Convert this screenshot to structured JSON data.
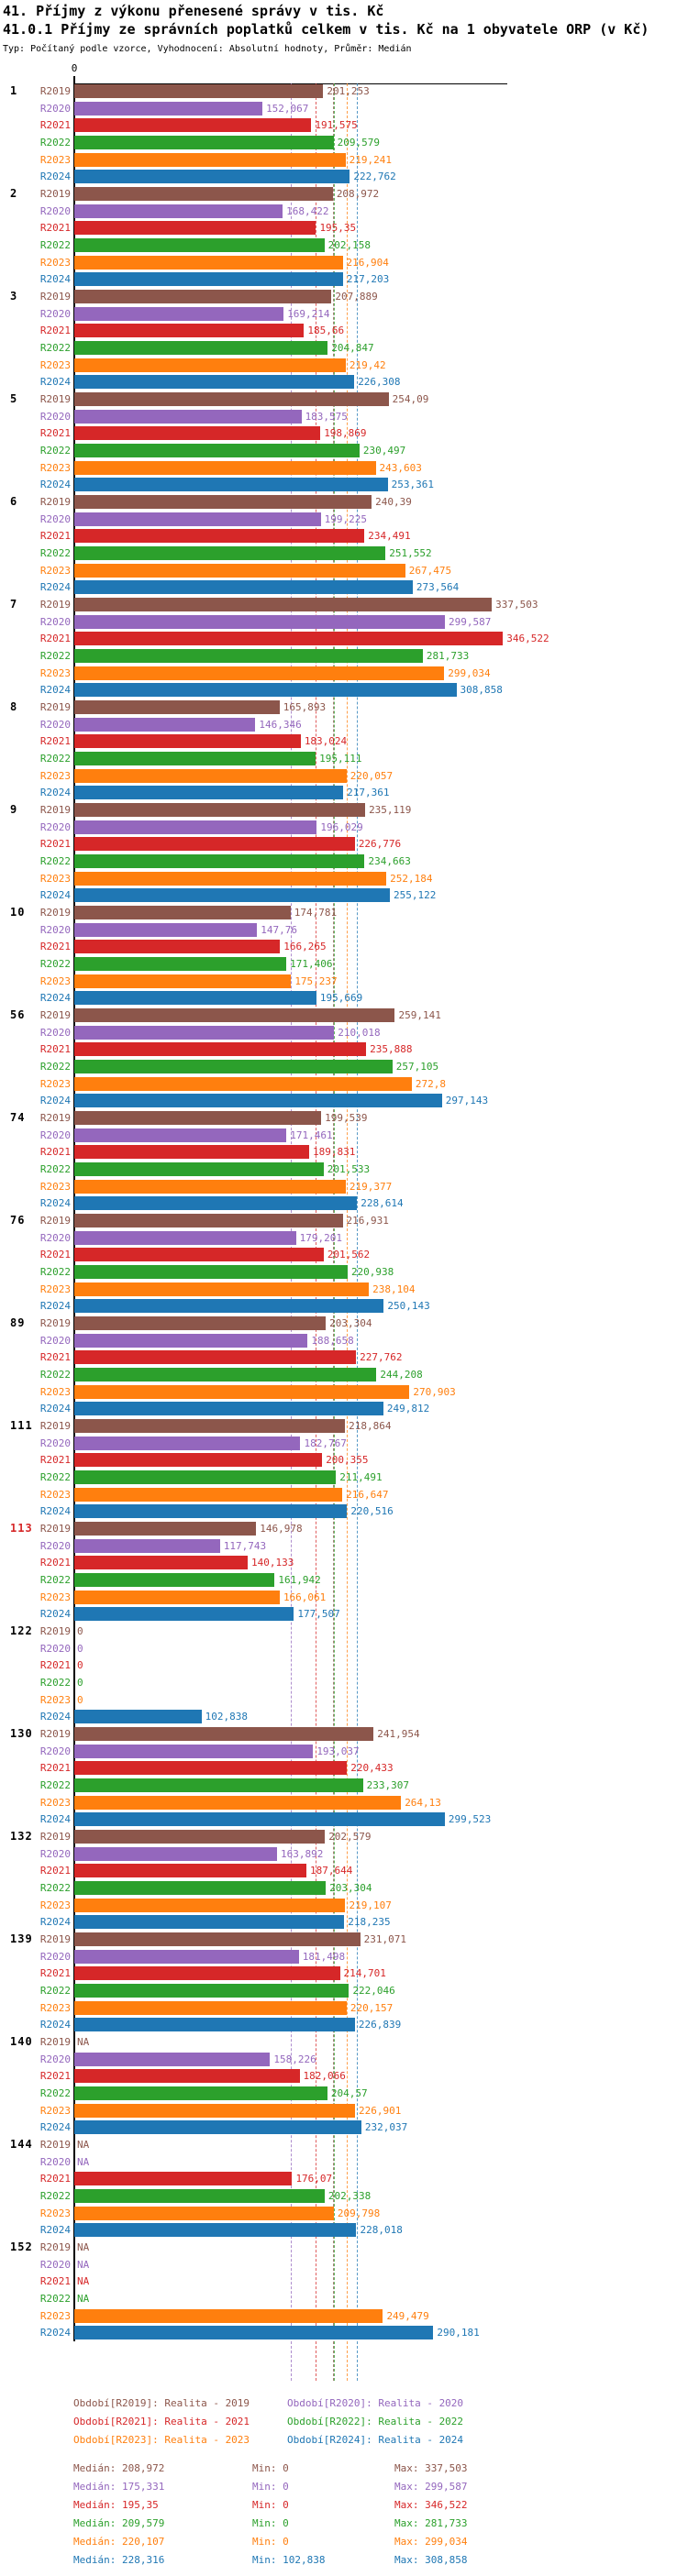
{
  "title1": "41. Příjmy z výkonu přenesené správy v tis. Kč",
  "title2": "41.0.1 Příjmy ze správních poplatků celkem v tis. Kč na 1 obyvatele ORP (v Kč)",
  "subtitle": "Typ: Počítaný podle vzorce, Vyhodnocení: Absolutní hodnoty, Průměr: Medián",
  "axis": {
    "zero_label": "0"
  },
  "colors": {
    "R2019": "#8c564b",
    "R2020": "#9467bd",
    "R2021": "#d62728",
    "R2022": "#2ca02c",
    "R2023": "#ff7f0e",
    "R2024": "#1f77b4",
    "group_label_default": "#000000",
    "group_label_highlight": "#d62728"
  },
  "chart_data": {
    "type": "bar",
    "orientation": "horizontal-grouped",
    "x_axis": {
      "zero_label": "0",
      "approx_max": 350,
      "unit": "Kč (tis.)"
    },
    "series_order": [
      "R2019",
      "R2020",
      "R2021",
      "R2022",
      "R2023",
      "R2024"
    ],
    "medians": {
      "R2019": "208,972",
      "R2020": "175,331",
      "R2021": "195,35",
      "R2022": "209,579",
      "R2023": "220,107",
      "R2024": "228,316"
    },
    "groups": [
      {
        "id": "1",
        "highlight": false,
        "values": [
          "201,253",
          "152,067",
          "191,575",
          "209,579",
          "219,241",
          "222,762"
        ]
      },
      {
        "id": "2",
        "highlight": false,
        "values": [
          "208,972",
          "168,422",
          "195,35",
          "202,158",
          "216,904",
          "217,203"
        ]
      },
      {
        "id": "3",
        "highlight": false,
        "values": [
          "207,889",
          "169,214",
          "185,66",
          "204,847",
          "219,42",
          "226,308"
        ]
      },
      {
        "id": "5",
        "highlight": false,
        "values": [
          "254,09",
          "183,575",
          "198,869",
          "230,497",
          "243,603",
          "253,361"
        ]
      },
      {
        "id": "6",
        "highlight": false,
        "values": [
          "240,39",
          "199,225",
          "234,491",
          "251,552",
          "267,475",
          "273,564"
        ]
      },
      {
        "id": "7",
        "highlight": false,
        "values": [
          "337,503",
          "299,587",
          "346,522",
          "281,733",
          "299,034",
          "308,858"
        ]
      },
      {
        "id": "8",
        "highlight": false,
        "values": [
          "165,893",
          "146,346",
          "183,024",
          "195,111",
          "220,057",
          "217,361"
        ]
      },
      {
        "id": "9",
        "highlight": false,
        "values": [
          "235,119",
          "196,029",
          "226,776",
          "234,663",
          "252,184",
          "255,122"
        ]
      },
      {
        "id": "10",
        "highlight": false,
        "values": [
          "174,781",
          "147,76",
          "166,265",
          "171,406",
          "175,237",
          "195,669"
        ]
      },
      {
        "id": "56",
        "highlight": false,
        "values": [
          "259,141",
          "210,018",
          "235,888",
          "257,105",
          "272,8",
          "297,143"
        ]
      },
      {
        "id": "74",
        "highlight": false,
        "values": [
          "199,539",
          "171,461",
          "189,831",
          "201,533",
          "219,377",
          "228,614"
        ]
      },
      {
        "id": "76",
        "highlight": false,
        "values": [
          "216,931",
          "179,201",
          "201,562",
          "220,938",
          "238,104",
          "250,143"
        ]
      },
      {
        "id": "89",
        "highlight": false,
        "values": [
          "203,304",
          "188,658",
          "227,762",
          "244,208",
          "270,903",
          "249,812"
        ]
      },
      {
        "id": "111",
        "highlight": false,
        "values": [
          "218,864",
          "182,767",
          "200,355",
          "211,491",
          "216,647",
          "220,516"
        ]
      },
      {
        "id": "113",
        "highlight": true,
        "values": [
          "146,978",
          "117,743",
          "140,133",
          "161,942",
          "166,061",
          "177,507"
        ]
      },
      {
        "id": "122",
        "highlight": false,
        "values": [
          "0",
          "0",
          "0",
          "0",
          "0",
          "102,838"
        ]
      },
      {
        "id": "130",
        "highlight": false,
        "values": [
          "241,954",
          "193,037",
          "220,433",
          "233,307",
          "264,13",
          "299,523"
        ]
      },
      {
        "id": "132",
        "highlight": false,
        "values": [
          "202,579",
          "163,892",
          "187,644",
          "203,304",
          "219,107",
          "218,235"
        ]
      },
      {
        "id": "139",
        "highlight": false,
        "values": [
          "231,071",
          "181,498",
          "214,701",
          "222,046",
          "220,157",
          "226,839"
        ]
      },
      {
        "id": "140",
        "highlight": false,
        "values": [
          "NA",
          "158,226",
          "182,066",
          "204,57",
          "226,901",
          "232,037"
        ]
      },
      {
        "id": "144",
        "highlight": false,
        "values": [
          "NA",
          "NA",
          "176,07",
          "202,338",
          "209,798",
          "228,018"
        ]
      },
      {
        "id": "152",
        "highlight": false,
        "values": [
          "NA",
          "NA",
          "NA",
          "NA",
          "249,479",
          "290,181"
        ]
      }
    ]
  },
  "legend": {
    "items": [
      {
        "label": "Období[R2019]: Realita - 2019",
        "year": "R2019",
        "col": 0,
        "row": 0
      },
      {
        "label": "Období[R2020]: Realita - 2020",
        "year": "R2020",
        "col": 1,
        "row": 0
      },
      {
        "label": "Období[R2021]: Realita - 2021",
        "year": "R2021",
        "col": 0,
        "row": 1
      },
      {
        "label": "Období[R2022]: Realita - 2022",
        "year": "R2022",
        "col": 1,
        "row": 1
      },
      {
        "label": "Období[R2023]: Realita - 2023",
        "year": "R2023",
        "col": 0,
        "row": 2
      },
      {
        "label": "Období[R2024]: Realita - 2024",
        "year": "R2024",
        "col": 1,
        "row": 2
      }
    ]
  },
  "stats": {
    "rows": [
      {
        "year": "R2019",
        "median": "Medián: 208,972",
        "min": "Min: 0",
        "max": "Max: 337,503"
      },
      {
        "year": "R2020",
        "median": "Medián: 175,331",
        "min": "Min: 0",
        "max": "Max: 299,587"
      },
      {
        "year": "R2021",
        "median": "Medián: 195,35",
        "min": "Min: 0",
        "max": "Max: 346,522"
      },
      {
        "year": "R2022",
        "median": "Medián: 209,579",
        "min": "Min: 0",
        "max": "Max: 281,733"
      },
      {
        "year": "R2023",
        "median": "Medián: 220,107",
        "min": "Min: 0",
        "max": "Max: 299,034"
      },
      {
        "year": "R2024",
        "median": "Medián: 228,316",
        "min": "Min: 102,838",
        "max": "Max: 308,858"
      }
    ]
  }
}
